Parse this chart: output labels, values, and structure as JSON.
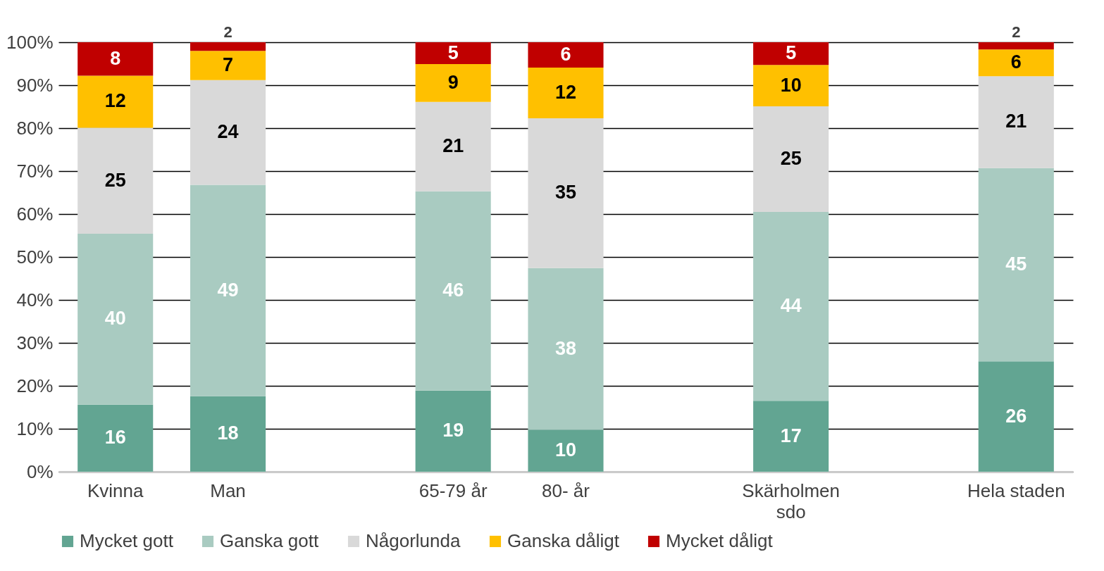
{
  "chart_data": {
    "type": "bar",
    "stacked": true,
    "data_labels": false,
    "categories": [
      "Kvinna",
      "Man",
      null,
      "65-79 år",
      "80- år",
      null,
      "Skärholmen sdo",
      null,
      "Hela staden"
    ],
    "series": [
      {
        "name": "Mycket gott",
        "color": "#62a592",
        "values": [
          15.6,
          17.6,
          null,
          18.9,
          9.8,
          null,
          16.5,
          null,
          25.7
        ],
        "value_labels": [
          "16",
          "18",
          null,
          "19",
          "10",
          null,
          "17",
          null,
          "26"
        ]
      },
      {
        "name": "Ganska gott",
        "color": "#a9cbc1",
        "values": [
          39.8,
          49.2,
          null,
          46.4,
          37.6,
          null,
          44.0,
          null,
          45.0
        ],
        "value_labels": [
          "40",
          "49",
          null,
          "46",
          "38",
          null,
          "44",
          null,
          "45"
        ]
      },
      {
        "name": "Någorlunda",
        "color": "#d9d9d9",
        "values": [
          24.7,
          24.4,
          null,
          20.8,
          34.9,
          null,
          24.6,
          null,
          21.4
        ],
        "value_labels": [
          "25",
          "24",
          null,
          "21",
          "35",
          null,
          "25",
          null,
          "21"
        ]
      },
      {
        "name": "Ganska dåligt",
        "color": "#ffc000",
        "values": [
          12.1,
          6.8,
          null,
          8.8,
          11.8,
          null,
          9.6,
          null,
          6.2
        ],
        "value_labels": [
          "12",
          "7",
          null,
          "9",
          "12",
          null,
          "10",
          null,
          "6"
        ]
      },
      {
        "name": "Mycket dåligt",
        "color": "#c00000",
        "values": [
          7.8,
          2.0,
          null,
          5.1,
          5.9,
          null,
          5.3,
          null,
          1.7
        ],
        "value_labels": [
          "8",
          "2",
          null,
          "5",
          "6",
          null,
          "5",
          null,
          "2"
        ]
      }
    ],
    "ylim": [
      0,
      100
    ],
    "yticks": [
      {
        "value": 0,
        "label": "0%"
      },
      {
        "value": 10,
        "label": "10%"
      },
      {
        "value": 20,
        "label": "20%"
      },
      {
        "value": 30,
        "label": "30%"
      },
      {
        "value": 40,
        "label": "40%"
      },
      {
        "value": 50,
        "label": "50%"
      },
      {
        "value": 60,
        "label": "60%"
      },
      {
        "value": 70,
        "label": "70%"
      },
      {
        "value": 80,
        "label": "80%"
      },
      {
        "value": 90,
        "label": "90%"
      },
      {
        "value": 100,
        "label": "100%"
      }
    ],
    "grid": "y",
    "legend": "bottom"
  }
}
